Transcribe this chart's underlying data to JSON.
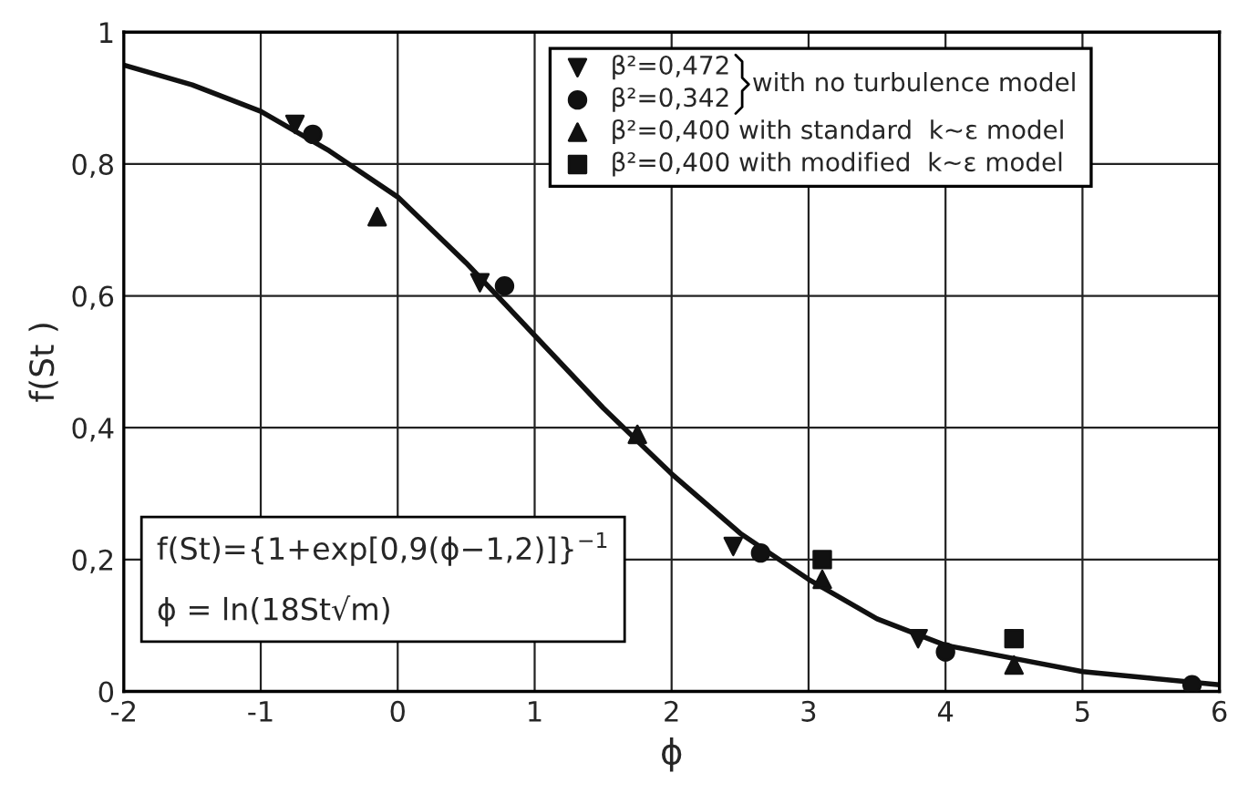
{
  "chart_data": {
    "type": "scatter",
    "xlabel": "ϕ",
    "ylabel": "f(St )",
    "xlim": [
      -2,
      6
    ],
    "ylim": [
      0,
      1
    ],
    "xticks": [
      -2,
      -1,
      0,
      1,
      2,
      3,
      4,
      5,
      6
    ],
    "yticks": [
      0,
      {
        "value": 0.2,
        "label": "0,2"
      },
      {
        "value": 0.4,
        "label": "0,4"
      },
      {
        "value": 0.6,
        "label": "0,6"
      },
      {
        "value": 0.8,
        "label": "0,8"
      },
      1
    ],
    "grid": true,
    "legend": "top right",
    "series": [
      {
        "name": "β²=0,472",
        "color": "#111111",
        "marker": "triangle_down",
        "x": [
          -0.75,
          0.6,
          2.45,
          3.8
        ],
        "values": [
          0.86,
          0.62,
          0.22,
          0.08
        ]
      },
      {
        "name": "β²=0,342",
        "color": "#111111",
        "marker": "circle",
        "x": [
          -0.62,
          0.78,
          2.65,
          4.0,
          5.8
        ],
        "values": [
          0.845,
          0.615,
          0.21,
          0.06,
          0.01
        ]
      },
      {
        "name": "β²=0,400 with standard  k~ε model",
        "color": "#111111",
        "marker": "triangle",
        "x": [
          -0.15,
          1.75,
          3.1,
          4.5
        ],
        "values": [
          0.72,
          0.39,
          0.17,
          0.04
        ]
      },
      {
        "name": "β²=0,400 with modified  k~ε model",
        "color": "#111111",
        "marker": "square",
        "x": [
          3.1,
          4.5
        ],
        "values": [
          0.2,
          0.08
        ]
      },
      {
        "type": "line",
        "color": "#111111",
        "marker": "none",
        "x": [
          -2,
          -1.5,
          -1,
          -0.5,
          0,
          0.5,
          1,
          1.5,
          2,
          2.5,
          3,
          3.5,
          4,
          4.5,
          5,
          5.5,
          6
        ],
        "values": [
          0.95,
          0.92,
          0.88,
          0.82,
          0.75,
          0.65,
          0.54,
          0.43,
          0.33,
          0.24,
          0.17,
          0.11,
          0.07,
          0.05,
          0.03,
          0.02,
          0.01
        ]
      }
    ],
    "annotations": [
      "with no turbulence model",
      "f(St)={1+exp[0,9(ϕ−1,2)]}$^{−1}$",
      "ϕ = ln(18St√m)"
    ]
  }
}
